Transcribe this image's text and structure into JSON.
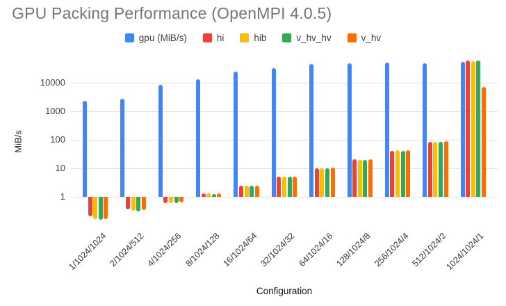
{
  "title": "GPU Packing Performance (OpenMPI 4.0.5)",
  "chart_data": {
    "type": "bar",
    "title": "GPU Packing Performance (OpenMPI 4.0.5)",
    "xlabel": "Configuration",
    "ylabel": "MiB/s",
    "y_scale": "log",
    "y_ticks": [
      1,
      10,
      100,
      1000,
      10000
    ],
    "y_range": [
      0.11,
      70000
    ],
    "grid": true,
    "legend_position": "top",
    "categories": [
      "1/1024/1024",
      "2/1024/512",
      "4/1024/256",
      "8/1024/128",
      "16/1024/64",
      "32/1024/32",
      "64/1024/16",
      "128/1024/8",
      "256/1024/4",
      "512/1024/2",
      "1024/1024/1"
    ],
    "series": [
      {
        "name": "gpu (MiB/s)",
        "color": "#4285F4",
        "values": [
          2300,
          2700,
          8400,
          13000,
          24000,
          32000,
          45000,
          48000,
          51000,
          48000,
          54000
        ]
      },
      {
        "name": "hi",
        "color": "#EA4335",
        "values": [
          0.21,
          0.36,
          0.62,
          1.3,
          2.4,
          5,
          10,
          21,
          41,
          84,
          60000
        ]
      },
      {
        "name": "hib",
        "color": "#FBBC04",
        "values": [
          0.17,
          0.33,
          0.6,
          1.3,
          2.4,
          5,
          10,
          20,
          42,
          84,
          57000
        ]
      },
      {
        "name": "v_hv_hv",
        "color": "#34A853",
        "values": [
          0.16,
          0.31,
          0.62,
          1.25,
          2.4,
          5,
          10,
          20,
          40,
          84,
          62000
        ]
      },
      {
        "name": "v_hv",
        "color": "#FF6D01",
        "values": [
          0.17,
          0.34,
          0.65,
          1.3,
          2.4,
          5,
          10.5,
          21,
          42,
          88,
          7000
        ]
      }
    ]
  }
}
